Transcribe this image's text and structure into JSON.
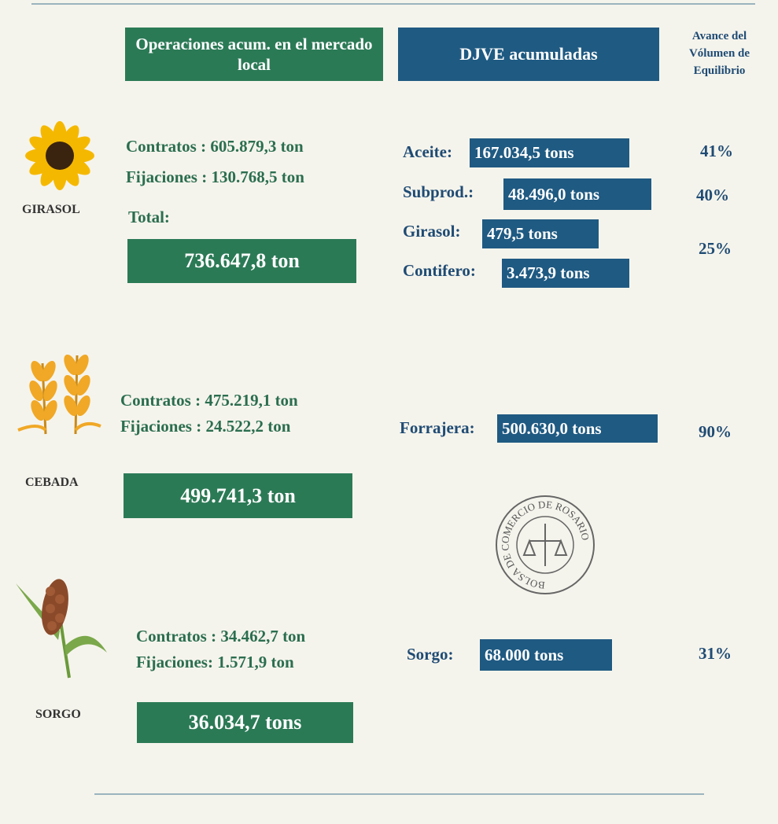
{
  "header": {
    "local": "Operaciones  acum. en el mercado local",
    "djve": "DJVE acumuladas",
    "avance": "Avance del Vólumen de Equilibrio"
  },
  "crops": [
    {
      "name": "GIRASOL",
      "contratos": "Contratos : 605.879,3 ton",
      "fijaciones": "Fijaciones : 130.768,5 ton",
      "total_label": "Total:",
      "total": "736.647,8 ton",
      "djve": [
        {
          "label": "Aceite:",
          "value": "167.034,5 tons"
        },
        {
          "label": "Subprod.:",
          "value": "48.496,0 tons"
        },
        {
          "label": "Girasol:",
          "value": "479,5 tons"
        },
        {
          "label": "Contifero:",
          "value": "3.473,9 tons"
        }
      ],
      "avance": [
        "41%",
        "40%",
        "25%"
      ]
    },
    {
      "name": "CEBADA",
      "contratos": "Contratos : 475.219,1 ton",
      "fijaciones": "Fijaciones : 24.522,2 ton",
      "total": "499.741,3 ton",
      "djve": [
        {
          "label": "Forrajera:",
          "value": "500.630,0 tons"
        }
      ],
      "avance": [
        "90%"
      ]
    },
    {
      "name": "SORGO",
      "contratos": "Contratos : 34.462,7 ton",
      "fijaciones": "Fijaciones: 1.571,9 ton",
      "total": "36.034,7 tons",
      "djve": [
        {
          "label": "Sorgo:",
          "value": "68.000 tons"
        }
      ],
      "avance": [
        "31%"
      ]
    }
  ],
  "logo": "BOLSA DE COMERCIO DE ROSARIO"
}
